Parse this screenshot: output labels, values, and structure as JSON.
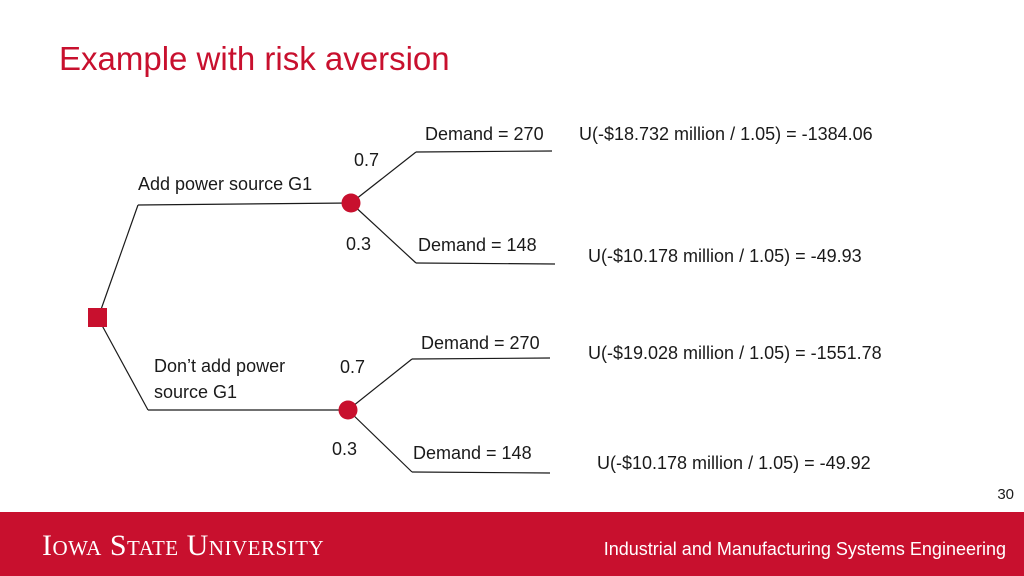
{
  "slide": {
    "title": "Example with risk aversion",
    "page_number": "30"
  },
  "tree": {
    "decision_branches": [
      {
        "label": "Add power source G1",
        "outcomes": [
          {
            "probability": "0.7",
            "label": "Demand = 270",
            "utility": "U(-$18.732 million / 1.05) = -1384.06"
          },
          {
            "probability": "0.3",
            "label": "Demand = 148",
            "utility": "U(-$10.178 million / 1.05) = -49.93"
          }
        ]
      },
      {
        "label": "Don’t add power source G1",
        "outcomes": [
          {
            "probability": "0.7",
            "label": "Demand = 270",
            "utility": "U(-$19.028 million / 1.05) = -1551.78"
          },
          {
            "probability": "0.3",
            "label": "Demand = 148",
            "utility": "U(-$10.178 million / 1.05) = -49.92"
          }
        ]
      }
    ],
    "colors": {
      "accent": "#c8102e",
      "line": "#1a1a1a"
    }
  },
  "footer": {
    "university": "Iowa State University",
    "department": "Industrial and Manufacturing Systems Engineering"
  }
}
